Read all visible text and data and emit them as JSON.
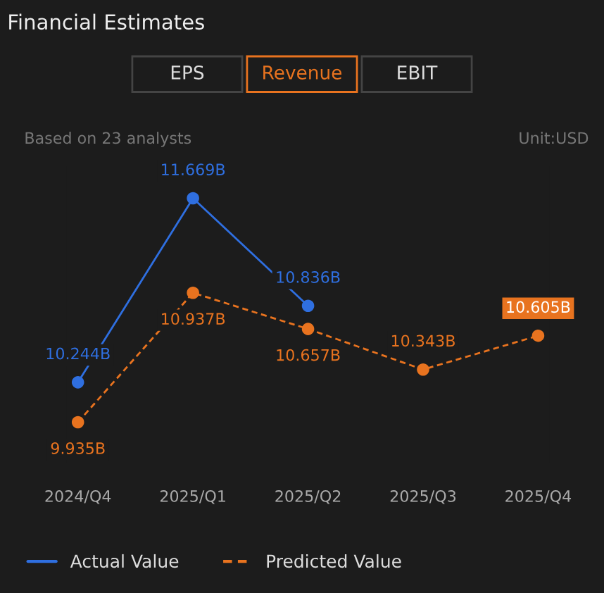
{
  "chart_data": {
    "type": "line",
    "title": "Financial Estimates",
    "subtitle": "Based on 23 analysts",
    "annotations": [
      "EPS",
      "Revenue",
      "EBIT",
      "Unit:USD"
    ],
    "categories": [
      "2024/Q4",
      "2025/Q1",
      "2025/Q2",
      "2025/Q3",
      "2025/Q4"
    ],
    "series": [
      {
        "name": "Actual Value",
        "color": "#2f6fe0",
        "line_style": "solid",
        "values": [
          10.244,
          11.669,
          10.836,
          null,
          null
        ],
        "value_labels": [
          "10.244B",
          "11.669B",
          "10.836B",
          null,
          null
        ]
      },
      {
        "name": "Predicted Value",
        "color": "#e8731f",
        "line_style": "dashed",
        "values": [
          9.935,
          10.937,
          10.657,
          10.343,
          10.605
        ],
        "value_labels": [
          "9.935B",
          "10.937B",
          "10.657B",
          "10.343B",
          "10.605B"
        ]
      }
    ],
    "marker": "circle",
    "grid": false,
    "legend": "bottom left"
  }
}
